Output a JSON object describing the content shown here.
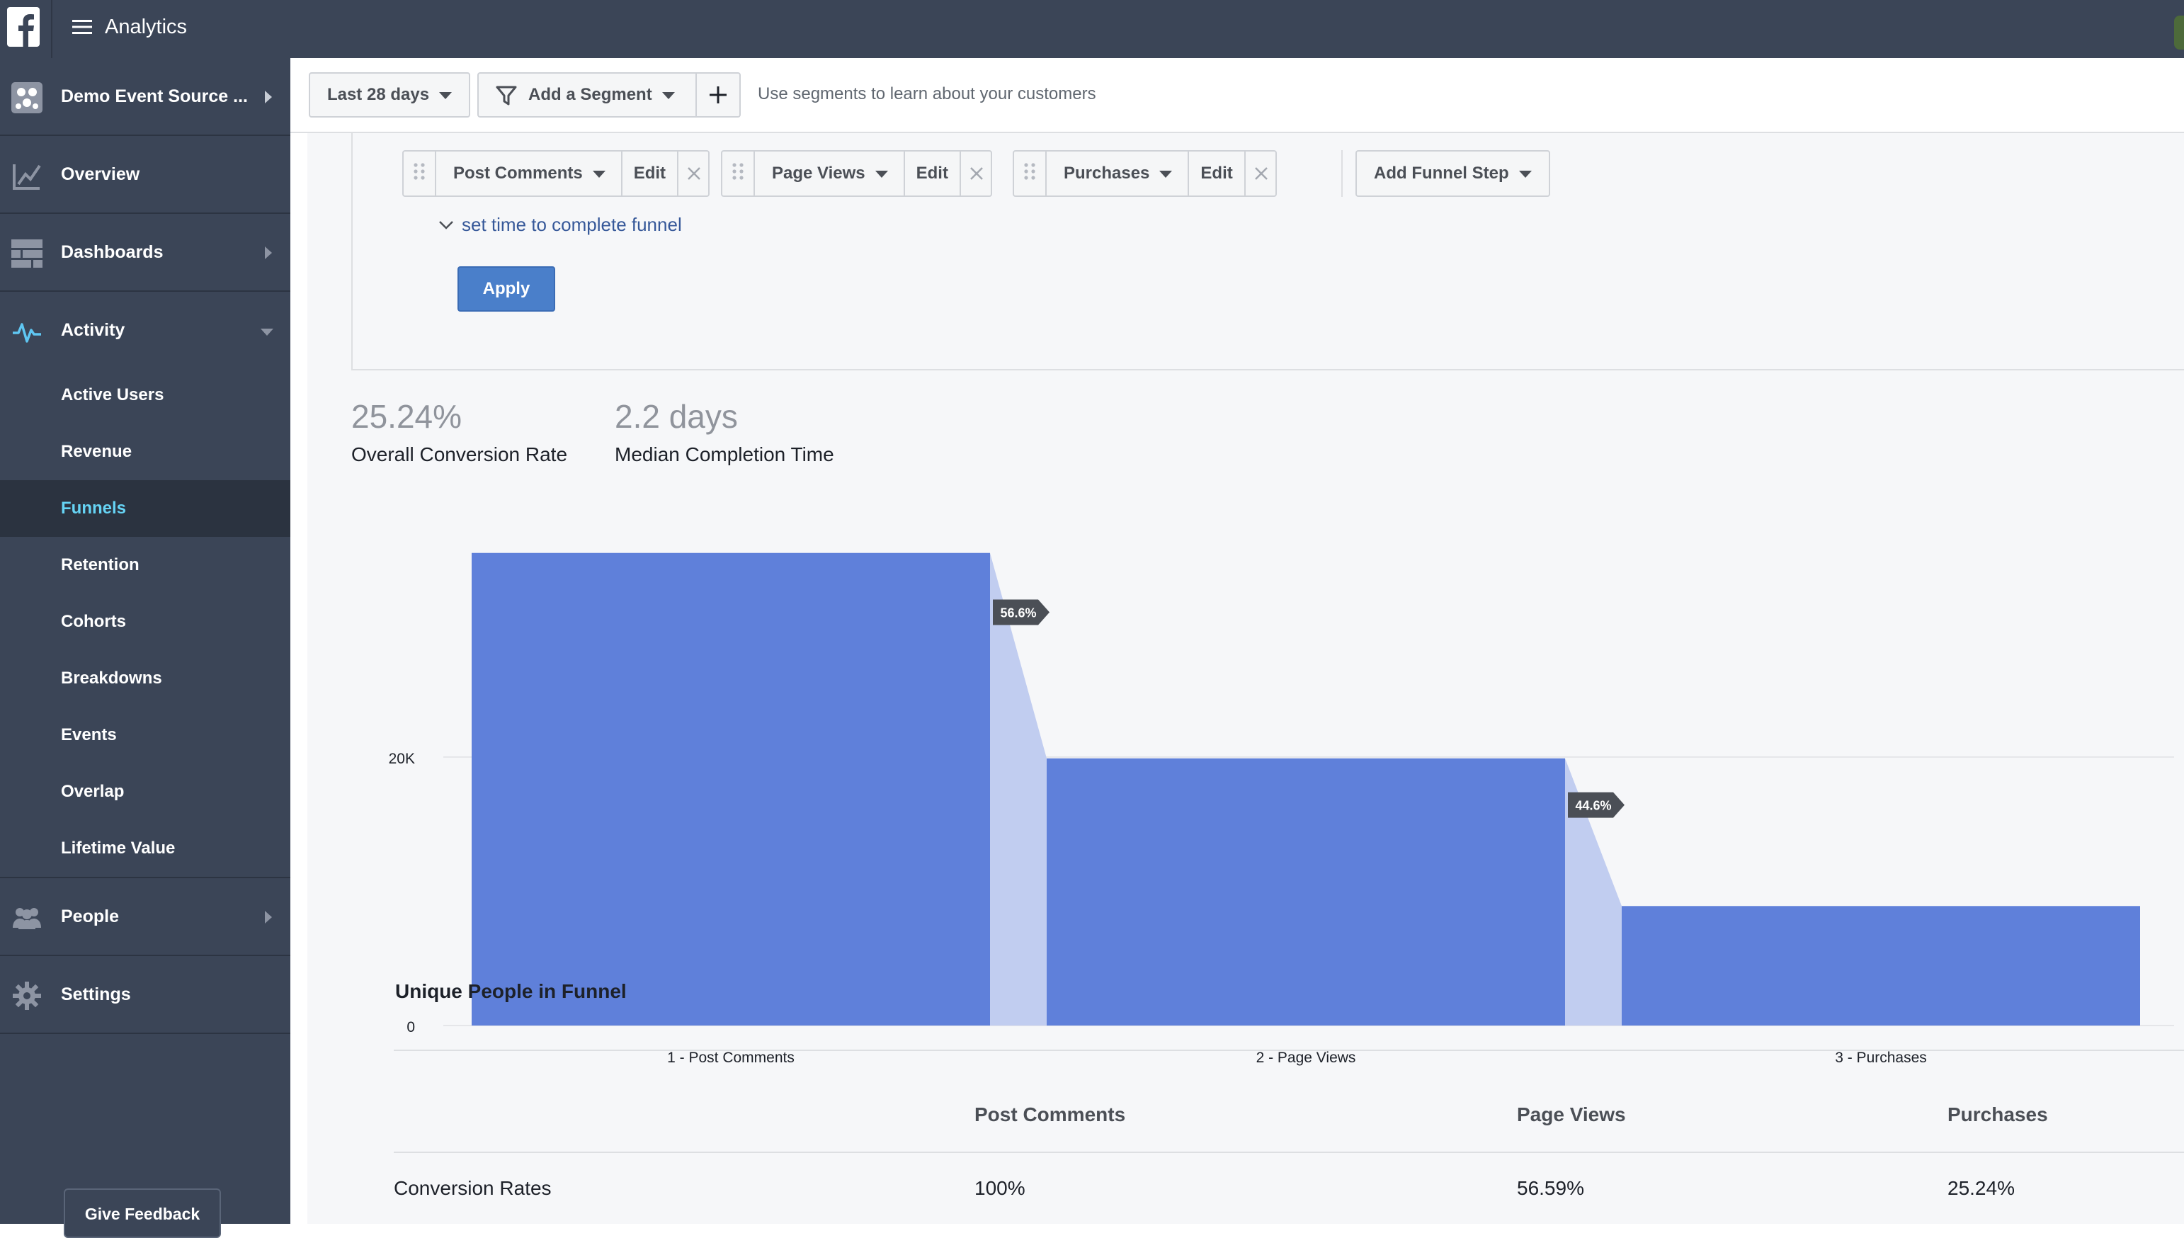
{
  "app": {
    "title": "Analytics",
    "brand_color": "#3b5998"
  },
  "sidebar": {
    "source": {
      "label": "Demo Event Source ...",
      "icon": "event-source-icon"
    },
    "items": [
      {
        "label": "Overview",
        "icon": "chart-line-icon"
      },
      {
        "label": "Dashboards",
        "icon": "grid-icon"
      },
      {
        "label": "Activity",
        "icon": "pulse-icon"
      }
    ],
    "activity_sub": [
      "Active Users",
      "Revenue",
      "Funnels",
      "Retention",
      "Cohorts",
      "Breakdowns",
      "Events",
      "Overlap",
      "Lifetime Value"
    ],
    "active_sub": "Funnels",
    "bottom_items": [
      {
        "label": "People",
        "icon": "people-icon"
      },
      {
        "label": "Settings",
        "icon": "gear-icon"
      }
    ],
    "feedback_label": "Give Feedback"
  },
  "toolbar": {
    "date_range": "Last 28 days",
    "segment_label": "Add a Segment",
    "hint": "Use segments to learn about your customers"
  },
  "funnel_config": {
    "steps": [
      {
        "name": "Post Comments",
        "edit": "Edit"
      },
      {
        "name": "Page Views",
        "edit": "Edit"
      },
      {
        "name": "Purchases",
        "edit": "Edit"
      }
    ],
    "add_step_label": "Add Funnel Step",
    "set_time_label": "set time to complete funnel",
    "apply_label": "Apply"
  },
  "stats": {
    "conversion_value": "25.24%",
    "conversion_label": "Overall Conversion Rate",
    "completion_value": "2.2 days",
    "completion_label": "Median Completion Time"
  },
  "chart_data": {
    "type": "bar",
    "categories": [
      "Post Comments",
      "Page Views",
      "Purchases"
    ],
    "category_prefixes": [
      "1 -",
      "2 -",
      "3 -"
    ],
    "values": [
      35200,
      19900,
      8900
    ],
    "step_conversions": [
      "56.6%",
      "44.6%"
    ],
    "y_ticks": [
      0,
      20000
    ],
    "y_tick_labels": [
      "0",
      "20K"
    ],
    "ylim": [
      0,
      40000
    ],
    "grid": true,
    "bar_color": "#5f80da",
    "dropoff_color": "#c1cdf0"
  },
  "table": {
    "title": "Unique People in Funnel",
    "headers": [
      "Post Comments",
      "Page Views",
      "Purchases"
    ],
    "rows": [
      {
        "label": "Conversion Rates",
        "values": [
          "100%",
          "56.59%",
          "25.24%"
        ]
      }
    ]
  }
}
